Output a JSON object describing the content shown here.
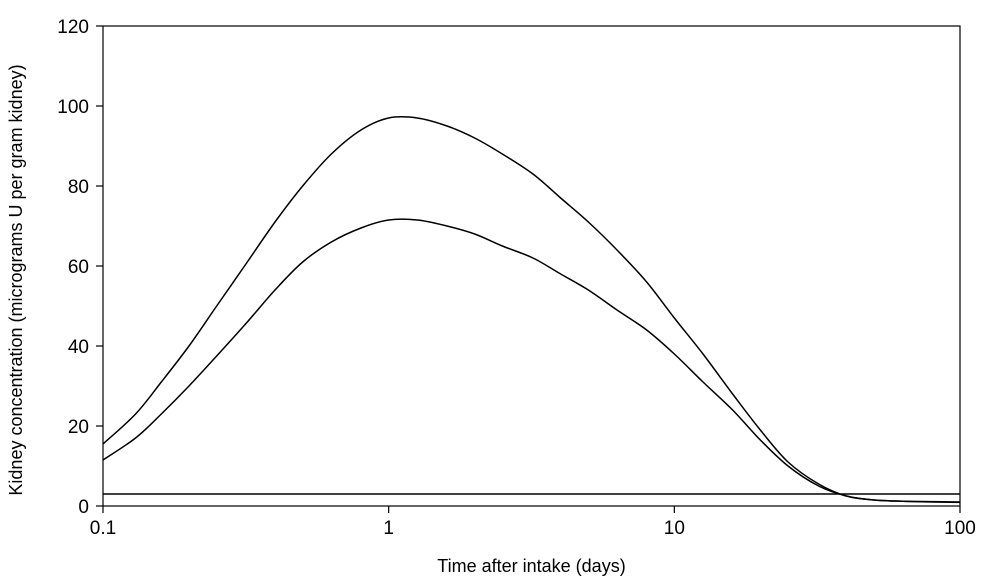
{
  "chart_data": {
    "type": "line",
    "title": "",
    "xlabel": "Time after intake (days)",
    "ylabel": "Kidney concentration (micrograms U per gram kidney)",
    "xscale": "log",
    "xlim": [
      0.1,
      100
    ],
    "ylim": [
      0,
      120
    ],
    "xticks": [
      0.1,
      1,
      10,
      100
    ],
    "xtick_labels": [
      "0.1",
      "1",
      "10",
      "100"
    ],
    "yticks": [
      0,
      20,
      40,
      60,
      80,
      100,
      120
    ],
    "ytick_labels": [
      "0",
      "20",
      "40",
      "60",
      "80",
      "100",
      "120"
    ],
    "grid": false,
    "legend": "none",
    "line_color": "#000000",
    "series": [
      {
        "x": [
          0.1,
          0.13,
          0.16,
          0.2,
          0.25,
          0.32,
          0.4,
          0.5,
          0.63,
          0.8,
          1,
          1.26,
          1.6,
          2,
          2.5,
          3.2,
          4,
          5,
          6.3,
          8,
          10,
          12.6,
          16,
          20,
          25,
          32,
          40,
          50,
          63,
          80,
          100
        ],
        "values": [
          15.5,
          23,
          31,
          40,
          50,
          61,
          71,
          80,
          88,
          94,
          97,
          97,
          95,
          92,
          88,
          83,
          77,
          71,
          64,
          56,
          47,
          38,
          28,
          19,
          11,
          5.5,
          2.5,
          1.5,
          1.2,
          1.0,
          0.9
        ]
      },
      {
        "x": [
          0.1,
          0.13,
          0.16,
          0.2,
          0.25,
          0.32,
          0.4,
          0.5,
          0.63,
          0.8,
          1,
          1.26,
          1.6,
          2,
          2.5,
          3.2,
          4,
          5,
          6.3,
          8,
          10,
          12.6,
          16,
          20,
          25,
          32,
          40,
          50,
          63,
          80,
          100
        ],
        "values": [
          11.5,
          17,
          23,
          30,
          37.5,
          46,
          54,
          61,
          66,
          69.5,
          71.5,
          71.5,
          70,
          68,
          65,
          62,
          58,
          54,
          49,
          44,
          38,
          31,
          24,
          16.5,
          10,
          5,
          2.5,
          1.5,
          1.2,
          1.1,
          1.0
        ]
      },
      {
        "x": [
          0.1,
          100
        ],
        "values": [
          3,
          3
        ]
      }
    ]
  }
}
